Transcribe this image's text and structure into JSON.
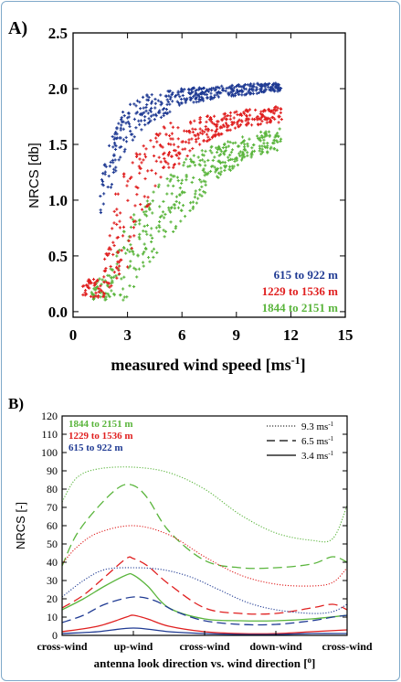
{
  "chart_data": [
    {
      "panel_label": "A)",
      "type": "scatter",
      "xlabel": "measured wind speed [ms",
      "xlabel_sup": "-1",
      "xlabel_end": "]",
      "ylabel": "NRCS [db]",
      "xlim": [
        0,
        15
      ],
      "ylim": [
        -0.05,
        2.5
      ],
      "xticks": [
        0,
        3,
        6,
        9,
        12,
        15
      ],
      "yticks": [
        0.0,
        0.5,
        1.0,
        1.5,
        2.0,
        2.5
      ],
      "ytick_labels": [
        "0.0",
        "0.5",
        "1.0",
        "1.5",
        "2.0",
        "2.5"
      ],
      "legend_position": "bottom-right",
      "series": [
        {
          "name": "615 to 922 m",
          "color": "#1f3a93",
          "envelope": [
            [
              1.5,
              0.85,
              1.25
            ],
            [
              2.5,
              1.3,
              1.75
            ],
            [
              3.0,
              1.45,
              1.85
            ],
            [
              3.5,
              1.55,
              1.9
            ],
            [
              4.0,
              1.65,
              1.95
            ],
            [
              5.0,
              1.75,
              1.98
            ],
            [
              6.0,
              1.85,
              2.0
            ],
            [
              8.0,
              1.92,
              2.02
            ],
            [
              10.0,
              1.95,
              2.05
            ],
            [
              11.5,
              1.98,
              2.05
            ]
          ]
        },
        {
          "name": "1229 to 1536 m",
          "color": "#e02020",
          "envelope": [
            [
              0.5,
              0.15,
              0.3
            ],
            [
              1.5,
              0.1,
              0.3
            ],
            [
              2.5,
              0.3,
              1.2
            ],
            [
              3.0,
              0.4,
              1.3
            ],
            [
              4.0,
              0.9,
              1.55
            ],
            [
              5.0,
              1.2,
              1.7
            ],
            [
              6.0,
              1.35,
              1.72
            ],
            [
              7.0,
              1.5,
              1.75
            ],
            [
              9.0,
              1.65,
              1.8
            ],
            [
              11.5,
              1.7,
              1.85
            ]
          ]
        },
        {
          "name": "1844 to 2151 m",
          "color": "#5ab53c",
          "envelope": [
            [
              1.0,
              0.1,
              0.25
            ],
            [
              2.0,
              0.1,
              0.35
            ],
            [
              3.0,
              0.1,
              0.9
            ],
            [
              4.0,
              0.4,
              1.0
            ],
            [
              5.0,
              0.6,
              1.2
            ],
            [
              6.0,
              0.8,
              1.35
            ],
            [
              7.0,
              1.0,
              1.45
            ],
            [
              8.0,
              1.2,
              1.5
            ],
            [
              10.0,
              1.4,
              1.6
            ],
            [
              11.5,
              1.45,
              1.65
            ]
          ]
        }
      ]
    },
    {
      "panel_label": "B)",
      "type": "line",
      "xlabel": "antenna look direction vs. wind direction [",
      "xlabel_sup": "o",
      "xlabel_end": "]",
      "ylabel": "NRCS [-]",
      "xlim": [
        0,
        4
      ],
      "ylim": [
        0,
        120
      ],
      "xticks": [
        0,
        1,
        2,
        3,
        4
      ],
      "xtick_labels": [
        "cross-wind",
        "up-wind",
        "cross-wind",
        "down-wind",
        "cross-wind"
      ],
      "yticks": [
        0,
        10,
        20,
        30,
        40,
        50,
        60,
        70,
        80,
        90,
        100,
        110,
        120
      ],
      "height_legend": [
        {
          "text": "1844 to 2151 m",
          "color": "#5ab53c"
        },
        {
          "text": "1229 to 1536 m",
          "color": "#e02020"
        },
        {
          "text": "615 to 922 m",
          "color": "#1f3a93"
        }
      ],
      "style_legend": [
        {
          "text": "9.3 ms",
          "sup": "-1",
          "style": "dotted"
        },
        {
          "text": "6.5 ms",
          "sup": "-1",
          "style": "dashed"
        },
        {
          "text": "3.4 ms",
          "sup": "-1",
          "style": "solid"
        }
      ],
      "series": [
        {
          "name": "1844 to 2151 m, 9.3 ms-1",
          "color": "#5ab53c",
          "style": "dotted",
          "x": [
            0,
            0.2,
            0.5,
            1.0,
            1.5,
            2.0,
            2.5,
            3.0,
            3.5,
            3.8,
            4.0
          ],
          "y": [
            73,
            86,
            91,
            92,
            89,
            80,
            66,
            56,
            52,
            53,
            71
          ]
        },
        {
          "name": "1844 to 2151 m, 6.5 ms-1",
          "color": "#5ab53c",
          "style": "dashed",
          "x": [
            0,
            0.2,
            0.5,
            0.8,
            1.0,
            1.2,
            1.5,
            2.0,
            2.5,
            3.0,
            3.5,
            3.8,
            4.0
          ],
          "y": [
            38,
            55,
            70,
            81,
            82,
            75,
            57,
            41,
            37,
            37,
            39,
            43,
            40
          ]
        },
        {
          "name": "1844 to 2151 m, 3.4 ms-1",
          "color": "#5ab53c",
          "style": "solid",
          "x": [
            0,
            0.3,
            0.6,
            0.9,
            1.0,
            1.2,
            1.5,
            2.0,
            2.5,
            3.0,
            3.5,
            4.0
          ],
          "y": [
            14,
            20,
            27,
            33,
            33,
            27,
            15,
            9,
            8,
            8,
            9,
            11
          ]
        },
        {
          "name": "1229 to 1536 m, 9.3 ms-1",
          "color": "#e02020",
          "style": "dotted",
          "x": [
            0,
            0.2,
            0.5,
            1.0,
            1.5,
            2.0,
            2.5,
            3.0,
            3.5,
            3.8,
            4.0
          ],
          "y": [
            39,
            48,
            56,
            60,
            55,
            43,
            33,
            28,
            27,
            29,
            37
          ]
        },
        {
          "name": "1229 to 1536 m, 6.5 ms-1",
          "color": "#e02020",
          "style": "dashed",
          "x": [
            0,
            0.3,
            0.6,
            0.9,
            1.0,
            1.2,
            1.5,
            2.0,
            2.5,
            3.0,
            3.5,
            3.8,
            4.0
          ],
          "y": [
            15,
            22,
            32,
            42,
            42,
            38,
            28,
            15,
            12,
            12,
            15,
            17,
            14
          ]
        },
        {
          "name": "1229 to 1536 m, 3.4 ms-1",
          "color": "#e02020",
          "style": "solid",
          "x": [
            0,
            0.5,
            0.9,
            1.0,
            1.2,
            1.5,
            2.0,
            2.5,
            3.0,
            3.5,
            4.0
          ],
          "y": [
            2,
            5,
            10,
            11,
            9,
            5,
            2,
            1,
            1,
            2,
            3
          ]
        },
        {
          "name": "615 to 922 m, 9.3 ms-1",
          "color": "#1f3a93",
          "style": "dotted",
          "x": [
            0,
            0.3,
            0.6,
            1.0,
            1.4,
            1.8,
            2.2,
            2.6,
            3.0,
            3.5,
            3.8,
            4.0
          ],
          "y": [
            21,
            30,
            36,
            37,
            36,
            32,
            25,
            18,
            14,
            12,
            13,
            17
          ]
        },
        {
          "name": "615 to 922 m, 6.5 ms-1",
          "color": "#1f3a93",
          "style": "dashed",
          "x": [
            0,
            0.3,
            0.6,
            1.0,
            1.3,
            1.6,
            2.0,
            2.5,
            3.0,
            3.5,
            3.8,
            4.0
          ],
          "y": [
            7,
            11,
            17,
            21,
            19,
            13,
            8,
            6,
            6,
            8,
            10,
            11
          ]
        },
        {
          "name": "615 to 922 m, 3.4 ms-1",
          "color": "#1f3a93",
          "style": "solid",
          "x": [
            0,
            0.5,
            1.0,
            1.5,
            2.0,
            2.5,
            3.0,
            3.5,
            4.0
          ],
          "y": [
            1,
            2,
            4,
            2,
            1,
            0.5,
            0.5,
            1,
            1
          ]
        }
      ]
    }
  ]
}
